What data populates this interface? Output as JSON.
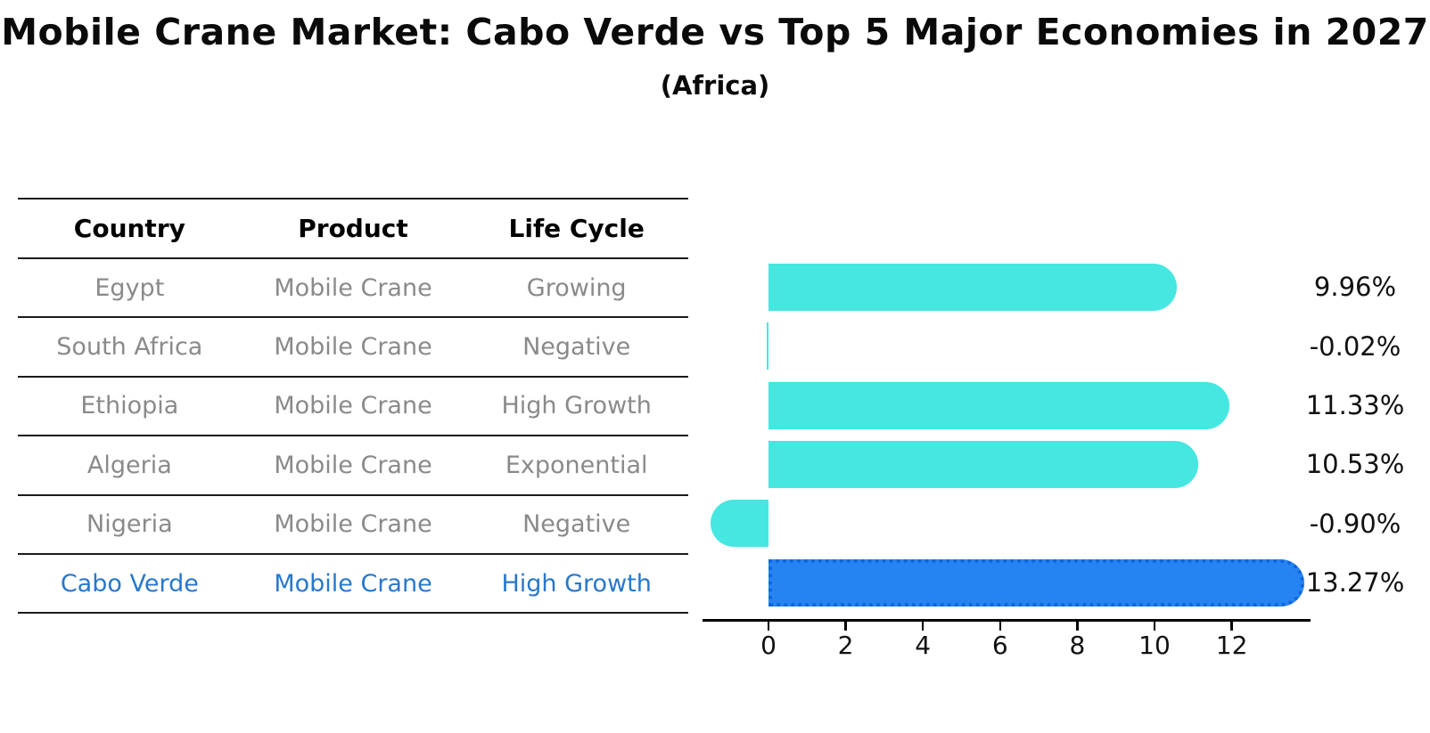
{
  "title": "Mobile Crane Market: Cabo Verde vs Top 5 Major Economies in 2027",
  "subtitle": "(Africa)",
  "table": {
    "headers": [
      "Country",
      "Product",
      "Life Cycle"
    ],
    "rows": [
      {
        "country": "Egypt",
        "product": "Mobile Crane",
        "life_cycle": "Growing"
      },
      {
        "country": "South Africa",
        "product": "Mobile Crane",
        "life_cycle": "Negative"
      },
      {
        "country": "Ethiopia",
        "product": "Mobile Crane",
        "life_cycle": "High Growth"
      },
      {
        "country": "Algeria",
        "product": "Mobile Crane",
        "life_cycle": "Exponential"
      },
      {
        "country": "Nigeria",
        "product": "Mobile Crane",
        "life_cycle": "Negative"
      },
      {
        "country": "Cabo Verde",
        "product": "Mobile Crane",
        "life_cycle": "High Growth"
      }
    ]
  },
  "chart_data": {
    "type": "bar",
    "orientation": "horizontal",
    "title": "Mobile Crane Market: Cabo Verde vs Top 5 Major Economies in 2027",
    "subtitle": "(Africa)",
    "categories": [
      "Egypt",
      "South Africa",
      "Ethiopia",
      "Algeria",
      "Nigeria",
      "Cabo Verde"
    ],
    "values": [
      9.96,
      -0.02,
      11.33,
      10.53,
      -0.9,
      13.27
    ],
    "value_labels": [
      "9.96%",
      "-0.02%",
      "11.33%",
      "10.53%",
      "-0.90%",
      "13.27%"
    ],
    "x_ticks": [
      0,
      2,
      4,
      6,
      8,
      10,
      12
    ],
    "xlim": [
      -1.7,
      14.05
    ],
    "grid": false,
    "legend": "none",
    "highlight_index": 5,
    "colors": {
      "default_bar": "#45e7e0",
      "highlight_bar": "#2584f2",
      "highlight_edge": "#0e65dd",
      "highlight_text": "#2878cb",
      "row_text": "#8a8a8a",
      "axis": "#000000",
      "value_label": "#111111"
    }
  }
}
